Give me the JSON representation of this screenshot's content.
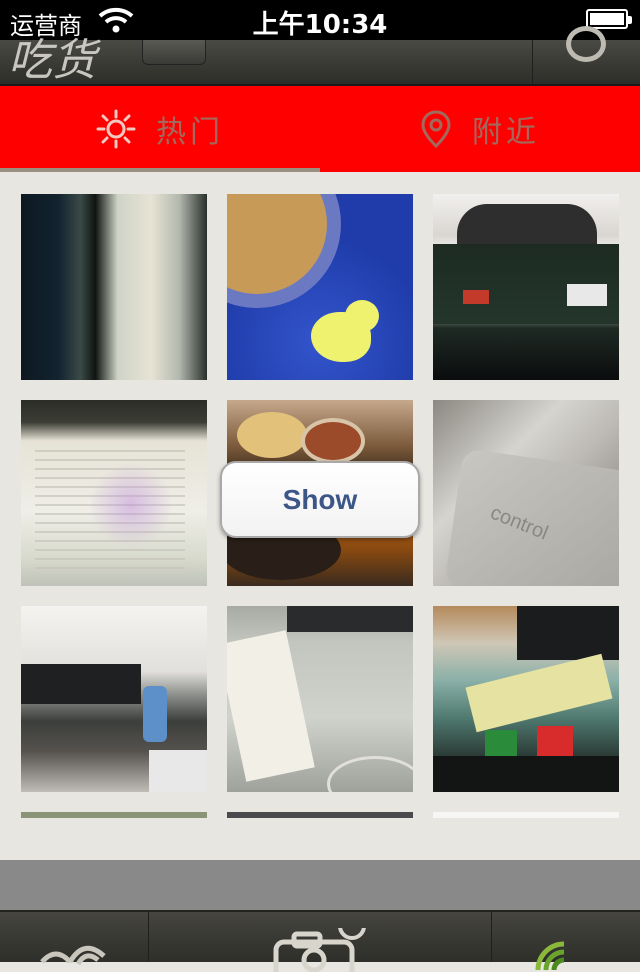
{
  "status_bar": {
    "carrier": "运营商",
    "time": "上午10:34"
  },
  "tabs": [
    {
      "label": "热门",
      "icon": "sun-icon",
      "selected": true
    },
    {
      "label": "附近",
      "icon": "location-pin-icon",
      "selected": false
    }
  ],
  "colors": {
    "tab_bar": "#ff0000",
    "tab_label": "#a26a5c",
    "show_text": "#3d5688",
    "background": "#e8e6e1"
  },
  "photos": [
    {
      "name": "photo-monitor-code"
    },
    {
      "name": "photo-blue-mousepad"
    },
    {
      "name": "photo-monitor-box"
    },
    {
      "name": "photo-screen-code"
    },
    {
      "name": "photo-food"
    },
    {
      "name": "photo-control-key"
    },
    {
      "name": "photo-desk-bottle"
    },
    {
      "name": "photo-desk-paper"
    },
    {
      "name": "photo-desk-items"
    }
  ],
  "show_button": {
    "label": "Show"
  },
  "photo_text": {
    "control_key": "control"
  },
  "bottom_bar": {
    "items": [
      "wifi-icon",
      "camera-icon",
      "radar-icon"
    ]
  }
}
